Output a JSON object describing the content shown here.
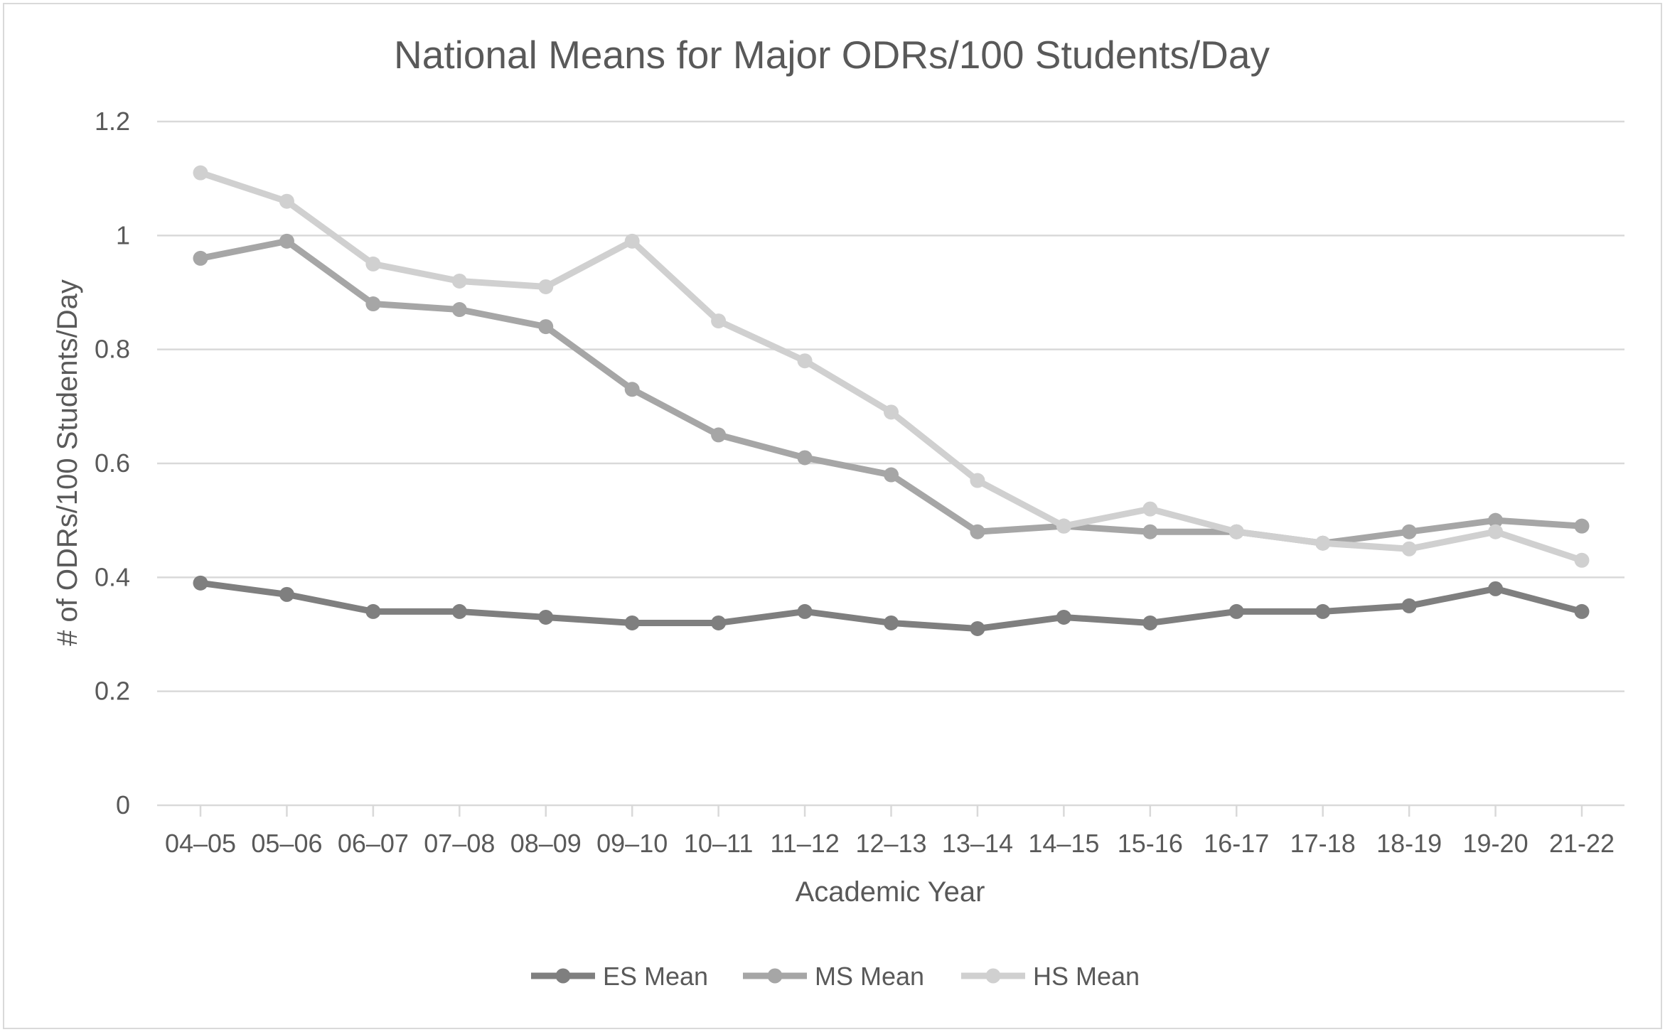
{
  "chart_data": {
    "type": "line",
    "title": "National Means for Major ODRs/100 Students/Day",
    "xlabel": "Academic Year",
    "ylabel": "# of ODRs/100 Students/Day",
    "ylim": [
      0,
      1.2
    ],
    "yticks": [
      0,
      0.2,
      0.4,
      0.6,
      0.8,
      1,
      1.2
    ],
    "ytick_labels": [
      "0",
      "0.2",
      "0.4",
      "0.6",
      "0.8",
      "1",
      "1.2"
    ],
    "grid": true,
    "legend_position": "bottom",
    "categories": [
      "04–05",
      "05–06",
      "06–07",
      "07–08",
      "08–09",
      "09–10",
      "10–11",
      "11–12",
      "12–13",
      "13–14",
      "14–15",
      "15-16",
      "16-17",
      "17-18",
      "18-19",
      "19-20",
      "21-22"
    ],
    "series": [
      {
        "name": "ES Mean",
        "color": "#7f7f7f",
        "values": [
          0.39,
          0.37,
          0.34,
          0.34,
          0.33,
          0.32,
          0.32,
          0.34,
          0.32,
          0.31,
          0.33,
          0.32,
          0.34,
          0.34,
          0.35,
          0.38,
          0.34
        ]
      },
      {
        "name": "MS Mean",
        "color": "#a6a6a6",
        "values": [
          0.96,
          0.99,
          0.88,
          0.87,
          0.84,
          0.73,
          0.65,
          0.61,
          0.58,
          0.48,
          0.49,
          0.48,
          0.48,
          0.46,
          0.48,
          0.5,
          0.49
        ]
      },
      {
        "name": "HS Mean",
        "color": "#d0d0d0",
        "values": [
          1.11,
          1.06,
          0.95,
          0.92,
          0.91,
          0.99,
          0.85,
          0.78,
          0.69,
          0.57,
          0.49,
          0.52,
          0.48,
          0.46,
          0.45,
          0.48,
          0.43
        ]
      }
    ]
  }
}
